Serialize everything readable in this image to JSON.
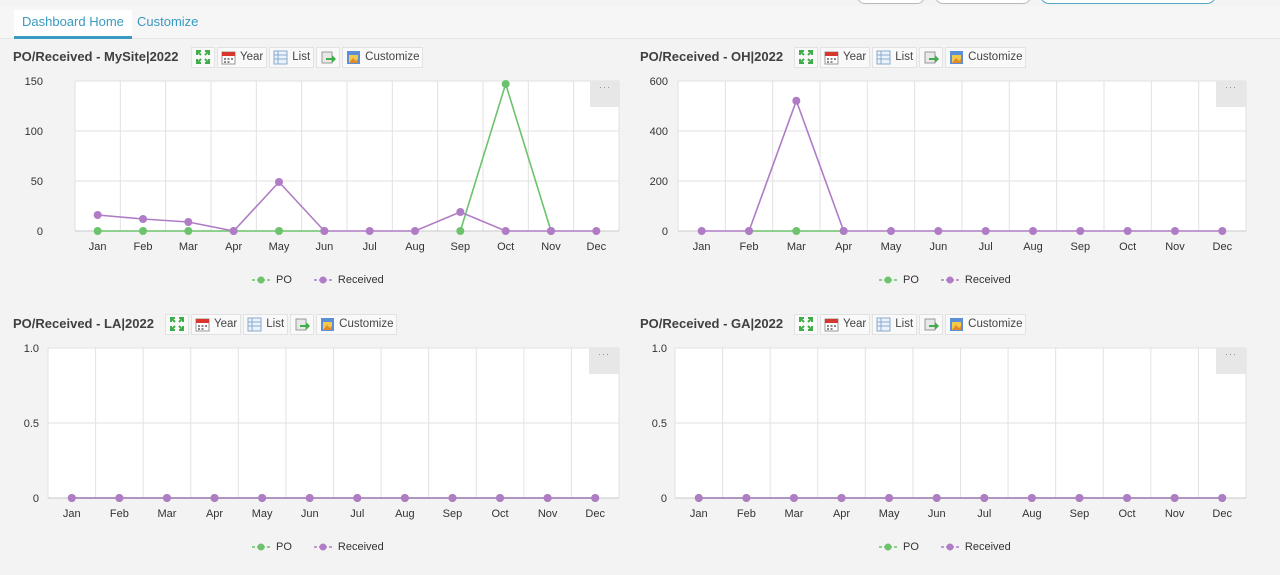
{
  "tabs": [
    {
      "label": "Dashboard Home",
      "active": true
    },
    {
      "label": "Customize",
      "active": false
    }
  ],
  "toolbar": {
    "year_label": "Year",
    "list_label": "List",
    "customize_label": "Customize"
  },
  "more_label": "···",
  "legend": {
    "po_label": "PO",
    "received_label": "Received"
  },
  "colors": {
    "po": "#6cc36c",
    "received": "#b07cc6",
    "accent": "#3a9ac0",
    "grid": "#e2e2e2"
  },
  "icons": [
    "expand-icon",
    "calendar-icon",
    "list-icon",
    "export-icon",
    "customize-icon"
  ],
  "chart_data": [
    {
      "type": "line",
      "title": "PO/Received - MySite|2022",
      "categories": [
        "Jan",
        "Feb",
        "Mar",
        "Apr",
        "May",
        "Jun",
        "Jul",
        "Aug",
        "Sep",
        "Oct",
        "Nov",
        "Dec"
      ],
      "yticks": [
        "0",
        "50",
        "100",
        "150"
      ],
      "ylim": [
        0,
        150
      ],
      "series": [
        {
          "name": "PO",
          "values": [
            0,
            0,
            0,
            0,
            0,
            0,
            null,
            null,
            0,
            147,
            0,
            null
          ]
        },
        {
          "name": "Received",
          "values": [
            16,
            12,
            9,
            0,
            49,
            0,
            0,
            0,
            19,
            0,
            0,
            0
          ]
        }
      ]
    },
    {
      "type": "line",
      "title": "PO/Received - OH|2022",
      "categories": [
        "Jan",
        "Feb",
        "Mar",
        "Apr",
        "May",
        "Jun",
        "Jul",
        "Aug",
        "Sep",
        "Oct",
        "Nov",
        "Dec"
      ],
      "yticks": [
        "0",
        "200",
        "400",
        "600"
      ],
      "ylim": [
        0,
        600
      ],
      "series": [
        {
          "name": "PO",
          "values": [
            null,
            0,
            0,
            0,
            null,
            null,
            null,
            null,
            null,
            null,
            null,
            null
          ]
        },
        {
          "name": "Received",
          "values": [
            0,
            0,
            521,
            0,
            0,
            0,
            0,
            0,
            0,
            0,
            0,
            0
          ]
        }
      ]
    },
    {
      "type": "line",
      "title": "PO/Received - LA|2022",
      "categories": [
        "Jan",
        "Feb",
        "Mar",
        "Apr",
        "May",
        "Jun",
        "Jul",
        "Aug",
        "Sep",
        "Oct",
        "Nov",
        "Dec"
      ],
      "yticks": [
        "0",
        "0.5",
        "1.0"
      ],
      "ylim": [
        0,
        1
      ],
      "series": [
        {
          "name": "PO",
          "values": [
            0,
            0,
            0,
            0,
            0,
            0,
            0,
            0,
            0,
            0,
            0,
            0
          ]
        },
        {
          "name": "Received",
          "values": [
            0,
            0,
            0,
            0,
            0,
            0,
            0,
            0,
            0,
            0,
            0,
            0
          ]
        }
      ]
    },
    {
      "type": "line",
      "title": "PO/Received - GA|2022",
      "categories": [
        "Jan",
        "Feb",
        "Mar",
        "Apr",
        "May",
        "Jun",
        "Jul",
        "Aug",
        "Sep",
        "Oct",
        "Nov",
        "Dec"
      ],
      "yticks": [
        "0",
        "0.5",
        "1.0"
      ],
      "ylim": [
        0,
        1
      ],
      "series": [
        {
          "name": "PO",
          "values": [
            0,
            0,
            0,
            0,
            0,
            0,
            0,
            0,
            0,
            0,
            0,
            0
          ]
        },
        {
          "name": "Received",
          "values": [
            0,
            0,
            0,
            0,
            0,
            0,
            0,
            0,
            0,
            0,
            0,
            0
          ]
        }
      ]
    }
  ]
}
